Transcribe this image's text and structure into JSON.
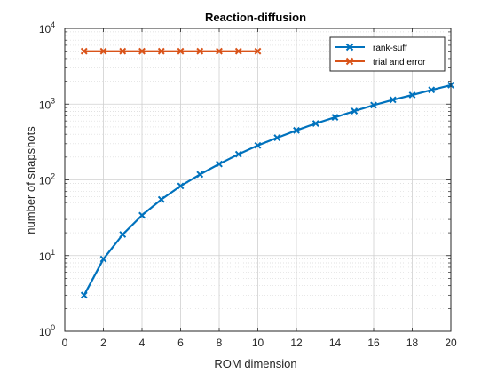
{
  "chart_data": {
    "type": "line",
    "title": "Reaction-diffusion",
    "xlabel": "ROM dimension",
    "ylabel": "number of snapshots",
    "xlim": [
      0,
      20
    ],
    "ylim": [
      1,
      10000
    ],
    "yscale": "log",
    "grid": true,
    "minor_grid": true,
    "legend_position": "top-right",
    "x_ticks": [
      "0",
      "2",
      "4",
      "6",
      "8",
      "10",
      "12",
      "14",
      "16",
      "18",
      "20"
    ],
    "y_ticks": [
      {
        "base": "10",
        "exp": "0"
      },
      {
        "base": "10",
        "exp": "1"
      },
      {
        "base": "10",
        "exp": "2"
      },
      {
        "base": "10",
        "exp": "3"
      },
      {
        "base": "10",
        "exp": "4"
      }
    ],
    "series": [
      {
        "name": "rank-suff",
        "color": "#0072bd",
        "marker": "x",
        "x": [
          1,
          2,
          3,
          4,
          5,
          6,
          7,
          8,
          9,
          10,
          11,
          12,
          13,
          14,
          15,
          16,
          17,
          18,
          19,
          20
        ],
        "y": [
          3,
          9,
          19,
          34,
          55,
          83,
          118,
          162,
          218,
          285,
          360,
          450,
          555,
          670,
          810,
          970,
          1140,
          1320,
          1540,
          1780
        ]
      },
      {
        "name": "trial and error",
        "color": "#d95319",
        "marker": "x",
        "x": [
          1,
          2,
          3,
          4,
          5,
          6,
          7,
          8,
          9,
          10
        ],
        "y": [
          5000,
          5000,
          5000,
          5000,
          5000,
          5000,
          5000,
          5000,
          5000,
          5000
        ]
      }
    ]
  }
}
